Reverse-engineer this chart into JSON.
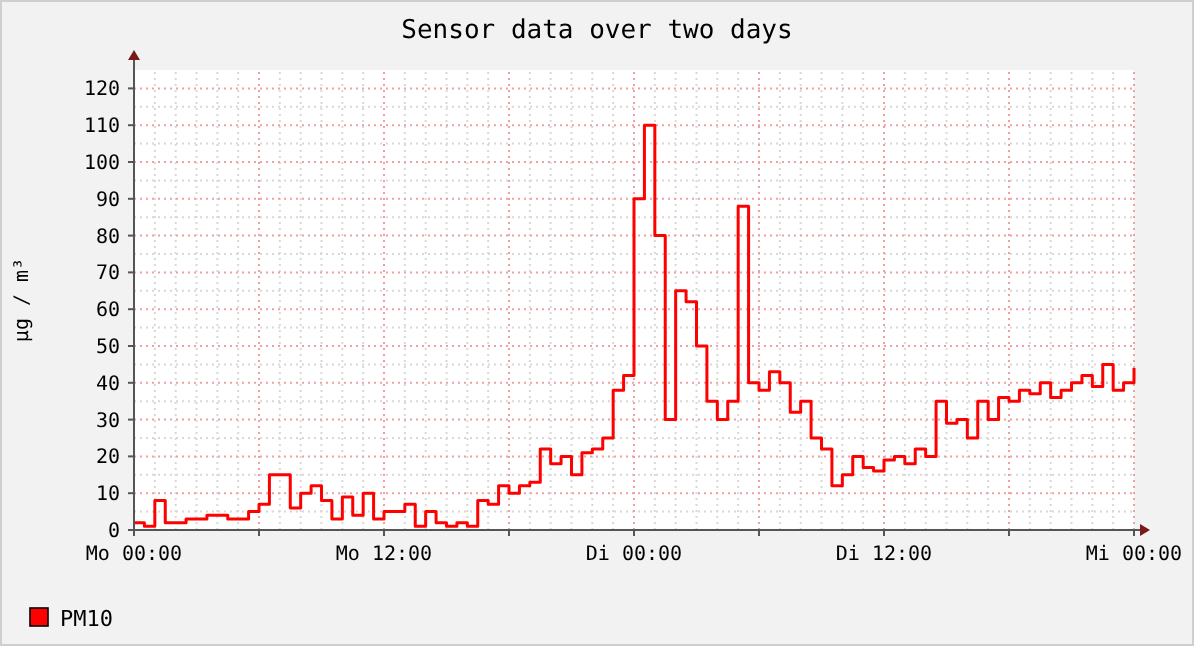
{
  "chart_data": {
    "type": "step",
    "title": "Sensor data over two days",
    "ylabel": "µg / m³",
    "categories": [
      "Mo 00:00",
      null,
      null,
      null,
      null,
      null,
      null,
      null,
      null,
      null,
      null,
      null,
      null,
      null,
      null,
      null,
      null,
      null,
      null,
      null,
      null,
      null,
      null,
      null,
      "Mo 12:00",
      null,
      null,
      null,
      null,
      null,
      null,
      null,
      null,
      null,
      null,
      null,
      null,
      null,
      null,
      null,
      null,
      null,
      null,
      null,
      null,
      null,
      null,
      null,
      "Di 00:00",
      null,
      null,
      null,
      null,
      null,
      null,
      null,
      null,
      null,
      null,
      null,
      null,
      null,
      null,
      null,
      null,
      null,
      null,
      null,
      null,
      null,
      null,
      null,
      "Di 12:00",
      null,
      null,
      null,
      null,
      null,
      null,
      null,
      null,
      null,
      null,
      null,
      null,
      null,
      null,
      null,
      null,
      null,
      null,
      null,
      null,
      null,
      null,
      null,
      "Mi 00:00"
    ],
    "ylim": [
      0,
      125
    ],
    "yticks": [
      0,
      10,
      20,
      30,
      40,
      50,
      60,
      70,
      80,
      90,
      100,
      110,
      120
    ],
    "grid": true,
    "legend": "bottom left",
    "series": [
      {
        "name": "PM10",
        "color": "#ff0000",
        "values": [
          2,
          1,
          8,
          2,
          2,
          3,
          3,
          4,
          4,
          3,
          3,
          5,
          7,
          15,
          15,
          6,
          10,
          12,
          8,
          3,
          9,
          4,
          10,
          3,
          5,
          5,
          7,
          1,
          5,
          2,
          1,
          2,
          1,
          8,
          7,
          12,
          10,
          12,
          13,
          22,
          18,
          20,
          15,
          21,
          22,
          25,
          38,
          42,
          90,
          110,
          80,
          30,
          65,
          62,
          50,
          35,
          30,
          35,
          88,
          40,
          38,
          43,
          40,
          32,
          35,
          25,
          22,
          12,
          15,
          20,
          17,
          16,
          19,
          20,
          18,
          22,
          20,
          35,
          29,
          30,
          25,
          35,
          30,
          36,
          35,
          38,
          37,
          40,
          36,
          38,
          40,
          42,
          39,
          45,
          38,
          40,
          44
        ]
      }
    ]
  }
}
